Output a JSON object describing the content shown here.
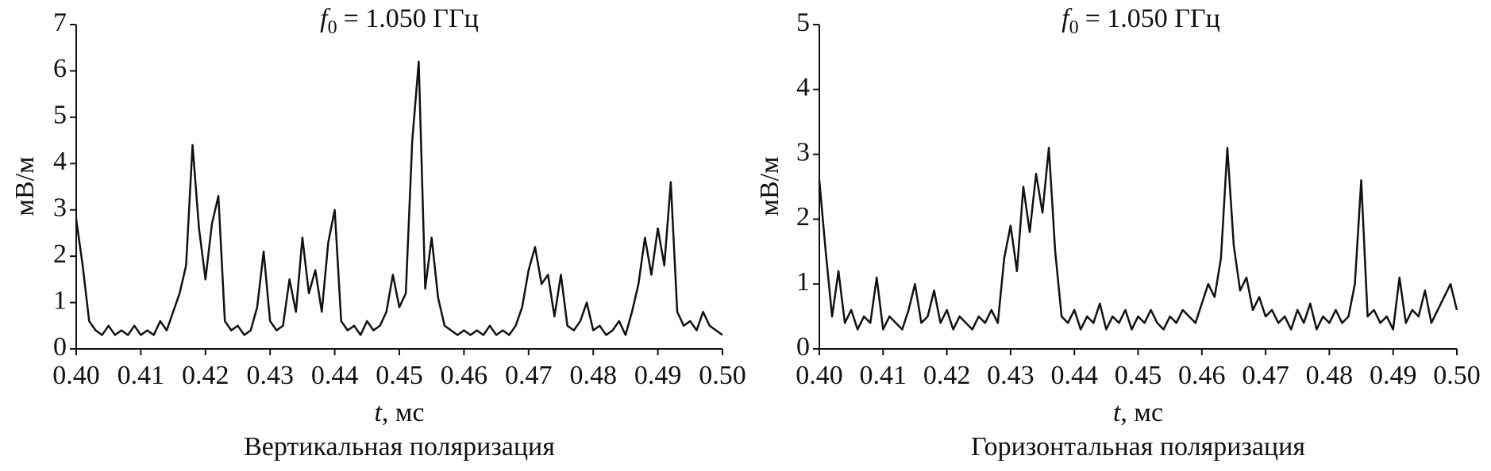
{
  "chart_data": [
    {
      "type": "line",
      "title": {
        "symbol": "f",
        "subscript": "0",
        "text": "= 1.050 ГГц"
      },
      "xlabel": {
        "symbol": "t",
        "text": ", мс"
      },
      "ylabel": "мВ/м",
      "caption": "Вертикальная поляризация",
      "color": "#111111",
      "xlim": [
        0.4,
        0.5
      ],
      "ylim": [
        0,
        7
      ],
      "xticks": [
        {
          "value": 0.4,
          "label": "0.40"
        },
        0.41,
        0.42,
        0.43,
        0.44,
        0.45,
        0.46,
        0.47,
        0.48,
        0.49,
        {
          "value": 0.5,
          "label": "0.50"
        }
      ],
      "yticks": [
        0,
        1,
        2,
        3,
        4,
        5,
        6,
        7
      ],
      "x": [
        0.4,
        0.401,
        0.402,
        0.403,
        0.404,
        0.405,
        0.406,
        0.407,
        0.408,
        0.409,
        0.41,
        0.411,
        0.412,
        0.413,
        0.414,
        0.415,
        0.416,
        0.417,
        0.418,
        0.419,
        0.42,
        0.421,
        0.422,
        0.423,
        0.424,
        0.425,
        0.426,
        0.427,
        0.428,
        0.429,
        0.43,
        0.431,
        0.432,
        0.433,
        0.434,
        0.435,
        0.436,
        0.437,
        0.438,
        0.439,
        0.44,
        0.441,
        0.442,
        0.443,
        0.444,
        0.445,
        0.446,
        0.447,
        0.448,
        0.449,
        0.45,
        0.451,
        0.452,
        0.453,
        0.454,
        0.455,
        0.456,
        0.457,
        0.458,
        0.459,
        0.46,
        0.461,
        0.462,
        0.463,
        0.464,
        0.465,
        0.466,
        0.467,
        0.468,
        0.469,
        0.47,
        0.471,
        0.472,
        0.473,
        0.474,
        0.475,
        0.476,
        0.477,
        0.478,
        0.479,
        0.48,
        0.481,
        0.482,
        0.483,
        0.484,
        0.485,
        0.486,
        0.487,
        0.488,
        0.489,
        0.49,
        0.491,
        0.492,
        0.493,
        0.494,
        0.495,
        0.496,
        0.497,
        0.498,
        0.499,
        0.5
      ],
      "values": [
        2.8,
        1.8,
        0.6,
        0.4,
        0.3,
        0.5,
        0.3,
        0.4,
        0.3,
        0.5,
        0.3,
        0.4,
        0.3,
        0.6,
        0.4,
        0.8,
        1.2,
        1.8,
        4.4,
        2.6,
        1.5,
        2.7,
        3.3,
        0.6,
        0.4,
        0.5,
        0.3,
        0.4,
        0.9,
        2.1,
        0.6,
        0.4,
        0.5,
        1.5,
        0.8,
        2.4,
        1.2,
        1.7,
        0.8,
        2.3,
        3.0,
        0.6,
        0.4,
        0.5,
        0.3,
        0.6,
        0.4,
        0.5,
        0.8,
        1.6,
        0.9,
        1.2,
        4.5,
        6.2,
        1.3,
        2.4,
        1.1,
        0.5,
        0.4,
        0.3,
        0.4,
        0.3,
        0.4,
        0.3,
        0.5,
        0.3,
        0.4,
        0.3,
        0.5,
        0.9,
        1.7,
        2.2,
        1.4,
        1.6,
        0.7,
        1.6,
        0.5,
        0.4,
        0.6,
        1.0,
        0.4,
        0.5,
        0.3,
        0.4,
        0.6,
        0.3,
        0.8,
        1.4,
        2.4,
        1.6,
        2.6,
        1.8,
        3.6,
        0.8,
        0.5,
        0.6,
        0.4,
        0.8,
        0.5,
        0.4,
        0.3
      ]
    },
    {
      "type": "line",
      "title": {
        "symbol": "f",
        "subscript": "0",
        "text": "= 1.050 ГГц"
      },
      "xlabel": {
        "symbol": "t",
        "text": ", мс"
      },
      "ylabel": "мВ/м",
      "caption": "Горизонтальная поляризация",
      "color": "#111111",
      "xlim": [
        0.4,
        0.5
      ],
      "ylim": [
        0,
        5
      ],
      "xticks": [
        {
          "value": 0.4,
          "label": "0.40"
        },
        0.41,
        0.42,
        0.43,
        0.44,
        0.45,
        0.46,
        0.47,
        0.48,
        0.49,
        {
          "value": 0.5,
          "label": "0.50"
        }
      ],
      "yticks": [
        0,
        1,
        2,
        3,
        4,
        5
      ],
      "x": [
        0.4,
        0.401,
        0.402,
        0.403,
        0.404,
        0.405,
        0.406,
        0.407,
        0.408,
        0.409,
        0.41,
        0.411,
        0.412,
        0.413,
        0.414,
        0.415,
        0.416,
        0.417,
        0.418,
        0.419,
        0.42,
        0.421,
        0.422,
        0.423,
        0.424,
        0.425,
        0.426,
        0.427,
        0.428,
        0.429,
        0.43,
        0.431,
        0.432,
        0.433,
        0.434,
        0.435,
        0.436,
        0.437,
        0.438,
        0.439,
        0.44,
        0.441,
        0.442,
        0.443,
        0.444,
        0.445,
        0.446,
        0.447,
        0.448,
        0.449,
        0.45,
        0.451,
        0.452,
        0.453,
        0.454,
        0.455,
        0.456,
        0.457,
        0.458,
        0.459,
        0.46,
        0.461,
        0.462,
        0.463,
        0.464,
        0.465,
        0.466,
        0.467,
        0.468,
        0.469,
        0.47,
        0.471,
        0.472,
        0.473,
        0.474,
        0.475,
        0.476,
        0.477,
        0.478,
        0.479,
        0.48,
        0.481,
        0.482,
        0.483,
        0.484,
        0.485,
        0.486,
        0.487,
        0.488,
        0.489,
        0.49,
        0.491,
        0.492,
        0.493,
        0.494,
        0.495,
        0.496,
        0.497,
        0.498,
        0.499,
        0.5
      ],
      "values": [
        2.6,
        1.5,
        0.5,
        1.2,
        0.4,
        0.6,
        0.3,
        0.5,
        0.4,
        1.1,
        0.3,
        0.5,
        0.4,
        0.3,
        0.6,
        1.0,
        0.4,
        0.5,
        0.9,
        0.4,
        0.6,
        0.3,
        0.5,
        0.4,
        0.3,
        0.5,
        0.4,
        0.6,
        0.4,
        1.4,
        1.9,
        1.2,
        2.5,
        1.8,
        2.7,
        2.1,
        3.1,
        1.5,
        0.5,
        0.4,
        0.6,
        0.3,
        0.5,
        0.4,
        0.7,
        0.3,
        0.5,
        0.4,
        0.6,
        0.3,
        0.5,
        0.4,
        0.6,
        0.4,
        0.3,
        0.5,
        0.4,
        0.6,
        0.5,
        0.4,
        0.7,
        1.0,
        0.8,
        1.4,
        3.1,
        1.6,
        0.9,
        1.1,
        0.6,
        0.8,
        0.5,
        0.6,
        0.4,
        0.5,
        0.3,
        0.6,
        0.4,
        0.7,
        0.3,
        0.5,
        0.4,
        0.6,
        0.4,
        0.5,
        1.0,
        2.6,
        0.5,
        0.6,
        0.4,
        0.5,
        0.3,
        1.1,
        0.4,
        0.6,
        0.5,
        0.9,
        0.4,
        0.6,
        0.8,
        1.0,
        0.6
      ]
    }
  ]
}
